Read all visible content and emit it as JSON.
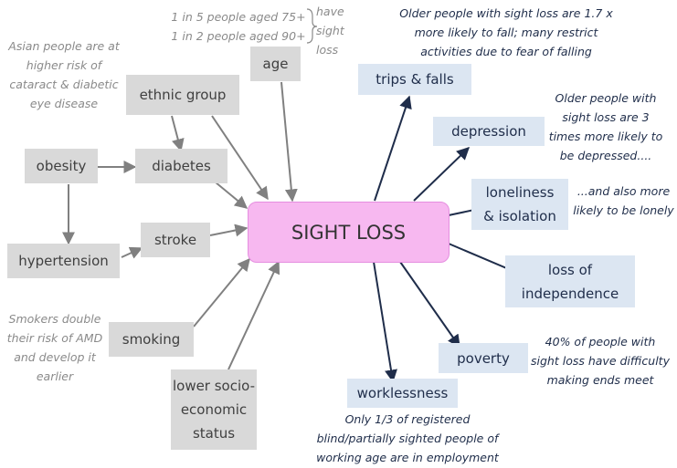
{
  "center": {
    "label": "SIGHT LOSS"
  },
  "risk_factors": {
    "age": "age",
    "ethnic_group": "ethnic group",
    "obesity": "obesity",
    "diabetes": "diabetes",
    "stroke": "stroke",
    "hypertension": "hypertension",
    "smoking": "smoking",
    "lower_socio_economic_status": [
      "lower socio-",
      "economic",
      "status"
    ]
  },
  "consequences": {
    "trips_falls": "trips & falls",
    "depression": "depression",
    "loneliness": [
      "loneliness",
      "& isolation"
    ],
    "independence": [
      "loss of",
      "independence"
    ],
    "poverty": "poverty",
    "worklessness": "worklessness"
  },
  "notes": {
    "age_stats": [
      "1 in 5 people aged 75+",
      "1 in 2 people aged 90+"
    ],
    "age_have": [
      "have",
      "sight",
      "loss"
    ],
    "ethnic": [
      "Asian people are at",
      "higher risk of",
      "cataract & diabetic",
      "eye disease"
    ],
    "smokers": [
      "Smokers double",
      "their risk of AMD",
      "and develop it",
      "earlier"
    ],
    "falls": [
      "Older people with sight loss are 1.7 x",
      "more likely to fall; many restrict",
      "activities due to fear of falling"
    ],
    "depression": [
      "Older people with",
      "sight loss are 3",
      "times more likely to",
      "be depressed...."
    ],
    "lonely": [
      "...and also more",
      "likely to be lonely"
    ],
    "poverty": [
      "40% of people with",
      "sight loss have difficulty",
      "making ends meet"
    ],
    "work": [
      "Only 1/3 of registered",
      "blind/partially sighted people of",
      "working age are in employment"
    ]
  },
  "colors": {
    "risk_box": "#d9d9d9",
    "consequence_box": "#dce6f2",
    "center_box": "#f7b8f0",
    "risk_arrow": "#808080",
    "consequence_arrow": "#1f2d4a"
  }
}
